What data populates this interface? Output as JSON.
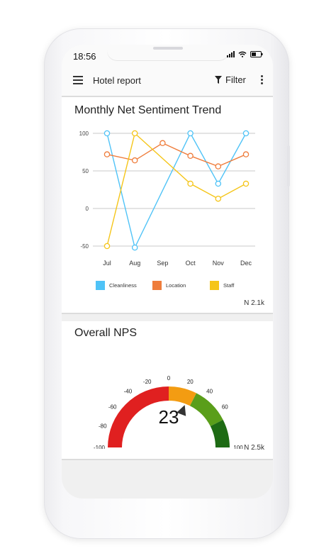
{
  "status_bar": {
    "time": "18:56"
  },
  "app_bar": {
    "title": "Hotel report",
    "filter_label": "Filter"
  },
  "trend_card": {
    "title": "Monthly Net Sentiment Trend",
    "count": "N 2.1k",
    "chart_data": {
      "type": "line",
      "x": [
        "Jul",
        "Aug",
        "Sep",
        "Oct",
        "Nov",
        "Dec"
      ],
      "ylim": [
        -50,
        100
      ],
      "yticks": [
        "100",
        "50",
        "0",
        "-50"
      ],
      "grid": true,
      "legend_position": "bottom",
      "series": [
        {
          "name": "Cleanliness",
          "color": "#4fc3f7",
          "values": [
            100,
            -52,
            null,
            100,
            33,
            100
          ]
        },
        {
          "name": "Location",
          "color": "#ef7d3c",
          "values": [
            72,
            64,
            87,
            70,
            56,
            72
          ]
        },
        {
          "name": "Staff",
          "color": "#f5c518",
          "values": [
            -50,
            100,
            null,
            33,
            13,
            33
          ]
        }
      ]
    }
  },
  "nps_card": {
    "title": "Overall NPS",
    "count": "N 2.5k",
    "value": "23",
    "chart_data": {
      "type": "gauge",
      "value": 23,
      "range": [
        -100,
        100
      ],
      "tick_labels": [
        "-100",
        "-80",
        "-60",
        "-40",
        "-20",
        "0",
        "20",
        "40",
        "60",
        "100"
      ],
      "segments": [
        {
          "from": -100,
          "to": 0,
          "color": "#e02020"
        },
        {
          "from": 0,
          "to": 30,
          "color": "#f39c12"
        },
        {
          "from": 30,
          "to": 70,
          "color": "#5a9e1a"
        },
        {
          "from": 70,
          "to": 100,
          "color": "#1e6b14"
        }
      ]
    }
  }
}
